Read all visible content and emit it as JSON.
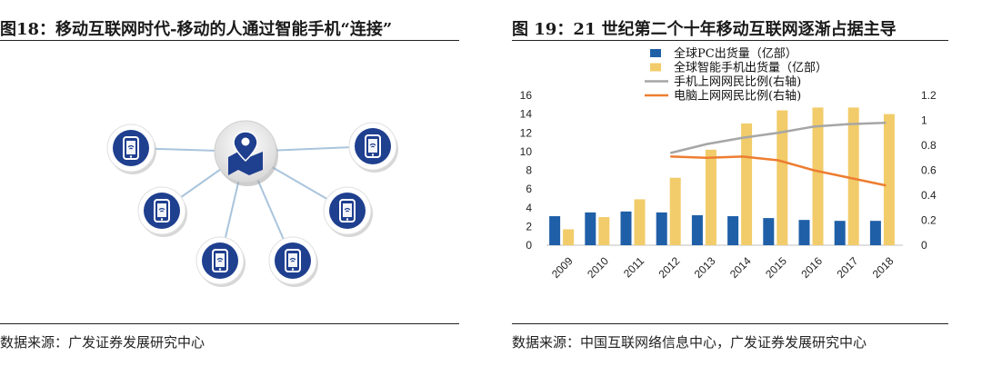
{
  "left_figure": {
    "title": "图18：移动互联网时代-移动的人通过智能手机“连接”",
    "source": "数据来源：广发证券发展研究中心",
    "icons": {
      "center": "map-pin-icon",
      "nodes": "smartphone-wifi-icon"
    },
    "colors": {
      "accent": "#1f3f8f",
      "line": "#a9c4dc"
    }
  },
  "right_figure": {
    "title": "图 19：21 世纪第二个十年移动互联网逐渐占据主导",
    "source": "数据来源：中国互联网络信息中心，广发证券发展研究中心"
  },
  "chart_data": {
    "type": "bar",
    "categories": [
      "2009",
      "2010",
      "2011",
      "2012",
      "2013",
      "2014",
      "2015",
      "2016",
      "2017",
      "2018"
    ],
    "series": [
      {
        "name": "全球PC出货量（亿部）",
        "type": "bar",
        "axis": "left",
        "color": "#1f5fa8",
        "values": [
          3.1,
          3.5,
          3.6,
          3.5,
          3.2,
          3.1,
          2.9,
          2.7,
          2.6,
          2.6
        ]
      },
      {
        "name": "全球智能手机出货量（亿部）",
        "type": "bar",
        "axis": "left",
        "color": "#f2cc6a",
        "values": [
          1.7,
          3.0,
          4.9,
          7.2,
          10.2,
          13.0,
          14.4,
          14.7,
          14.7,
          14.0
        ]
      },
      {
        "name": "手机上网网民比例(右轴)",
        "type": "line",
        "axis": "right",
        "color": "#a6a6a6",
        "values": [
          null,
          null,
          null,
          0.74,
          0.81,
          0.86,
          0.9,
          0.95,
          0.97,
          0.98
        ]
      },
      {
        "name": "电脑上网网民比例(右轴)",
        "type": "line",
        "axis": "right",
        "color": "#ed7d31",
        "values": [
          null,
          null,
          null,
          0.71,
          0.7,
          0.71,
          0.68,
          0.6,
          0.54,
          0.48
        ]
      }
    ],
    "ylim": [
      0,
      16
    ],
    "y_ticks": [
      "0",
      "2",
      "4",
      "6",
      "8",
      "10",
      "12",
      "14",
      "16"
    ],
    "y2lim": [
      0,
      1.2
    ],
    "y2_ticks": [
      "0",
      "0.2",
      "0.4",
      "0.6",
      "0.8",
      "1",
      "1.2"
    ],
    "grid": false,
    "legend_position": "top-left"
  }
}
